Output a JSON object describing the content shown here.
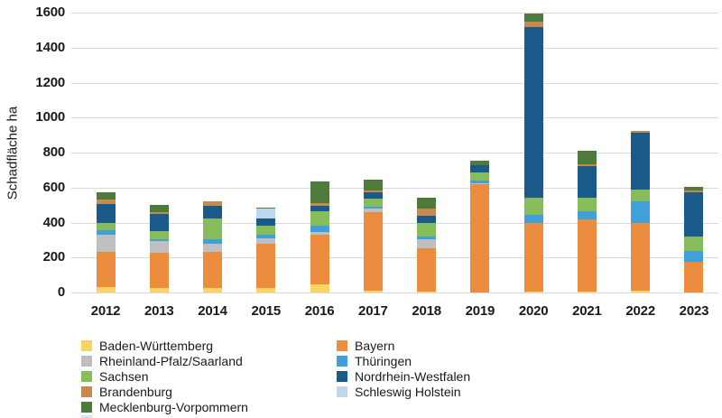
{
  "figure": {
    "background": "#ffffff",
    "text_color": "#1a1a1a",
    "gridline_color": "#d9d9d9"
  },
  "chart_data": {
    "type": "bar",
    "stacked": true,
    "title": "",
    "xlabel": "",
    "ylabel": "Schadfläche ha",
    "ylim": [
      0,
      1600
    ],
    "yticks": [
      0,
      200,
      400,
      600,
      800,
      1000,
      1200,
      1400,
      1600
    ],
    "grid": true,
    "legend_position": "bottom",
    "categories": [
      "2012",
      "2013",
      "2014",
      "2015",
      "2016",
      "2017",
      "2018",
      "2019",
      "2020",
      "2021",
      "2022",
      "2023"
    ],
    "series": [
      {
        "name": "Baden-Württemberg",
        "color": "#F8D462",
        "values": [
          30,
          25,
          25,
          25,
          45,
          10,
          5,
          0,
          5,
          5,
          10,
          0
        ]
      },
      {
        "name": "Bayern",
        "color": "#EC8C3F",
        "values": [
          200,
          200,
          205,
          255,
          285,
          450,
          250,
          620,
          390,
          415,
          385,
          175
        ]
      },
      {
        "name": "Rheinland-Pfalz/Saarland",
        "color": "#BFBFBF",
        "values": [
          100,
          70,
          50,
          30,
          15,
          20,
          50,
          5,
          0,
          0,
          0,
          0
        ]
      },
      {
        "name": "Thüringen",
        "color": "#41A0DA",
        "values": [
          25,
          10,
          25,
          20,
          35,
          10,
          15,
          15,
          50,
          45,
          125,
          60
        ]
      },
      {
        "name": "Sachsen",
        "color": "#86BC59",
        "values": [
          40,
          45,
          120,
          50,
          85,
          45,
          75,
          45,
          95,
          75,
          70,
          85
        ]
      },
      {
        "name": "Nordrhein-Westfalen",
        "color": "#1A5A8A",
        "values": [
          110,
          100,
          70,
          45,
          30,
          40,
          45,
          45,
          975,
          185,
          325,
          255
        ]
      },
      {
        "name": "Brandenburg",
        "color": "#C8894D",
        "values": [
          25,
          10,
          25,
          0,
          15,
          10,
          40,
          0,
          35,
          10,
          10,
          10
        ]
      },
      {
        "name": "Schleswig Holstein",
        "color": "#BDD7EE",
        "values": [
          0,
          0,
          0,
          55,
          0,
          0,
          0,
          0,
          0,
          0,
          0,
          0
        ]
      },
      {
        "name": "Mecklenburg-Vorpommern",
        "color": "#4E7B3C",
        "values": [
          45,
          40,
          0,
          5,
          125,
          60,
          60,
          25,
          45,
          75,
          0,
          20
        ]
      }
    ],
    "legend_columns": [
      [
        "Baden-Württemberg",
        "Rheinland-Pfalz/Saarland",
        "Sachsen",
        "Brandenburg",
        "Mecklenburg-Vorpommern"
      ],
      [
        "Bayern",
        "Thüringen",
        "Nordrhein-Westfalen",
        "Schleswig Holstein"
      ]
    ]
  }
}
